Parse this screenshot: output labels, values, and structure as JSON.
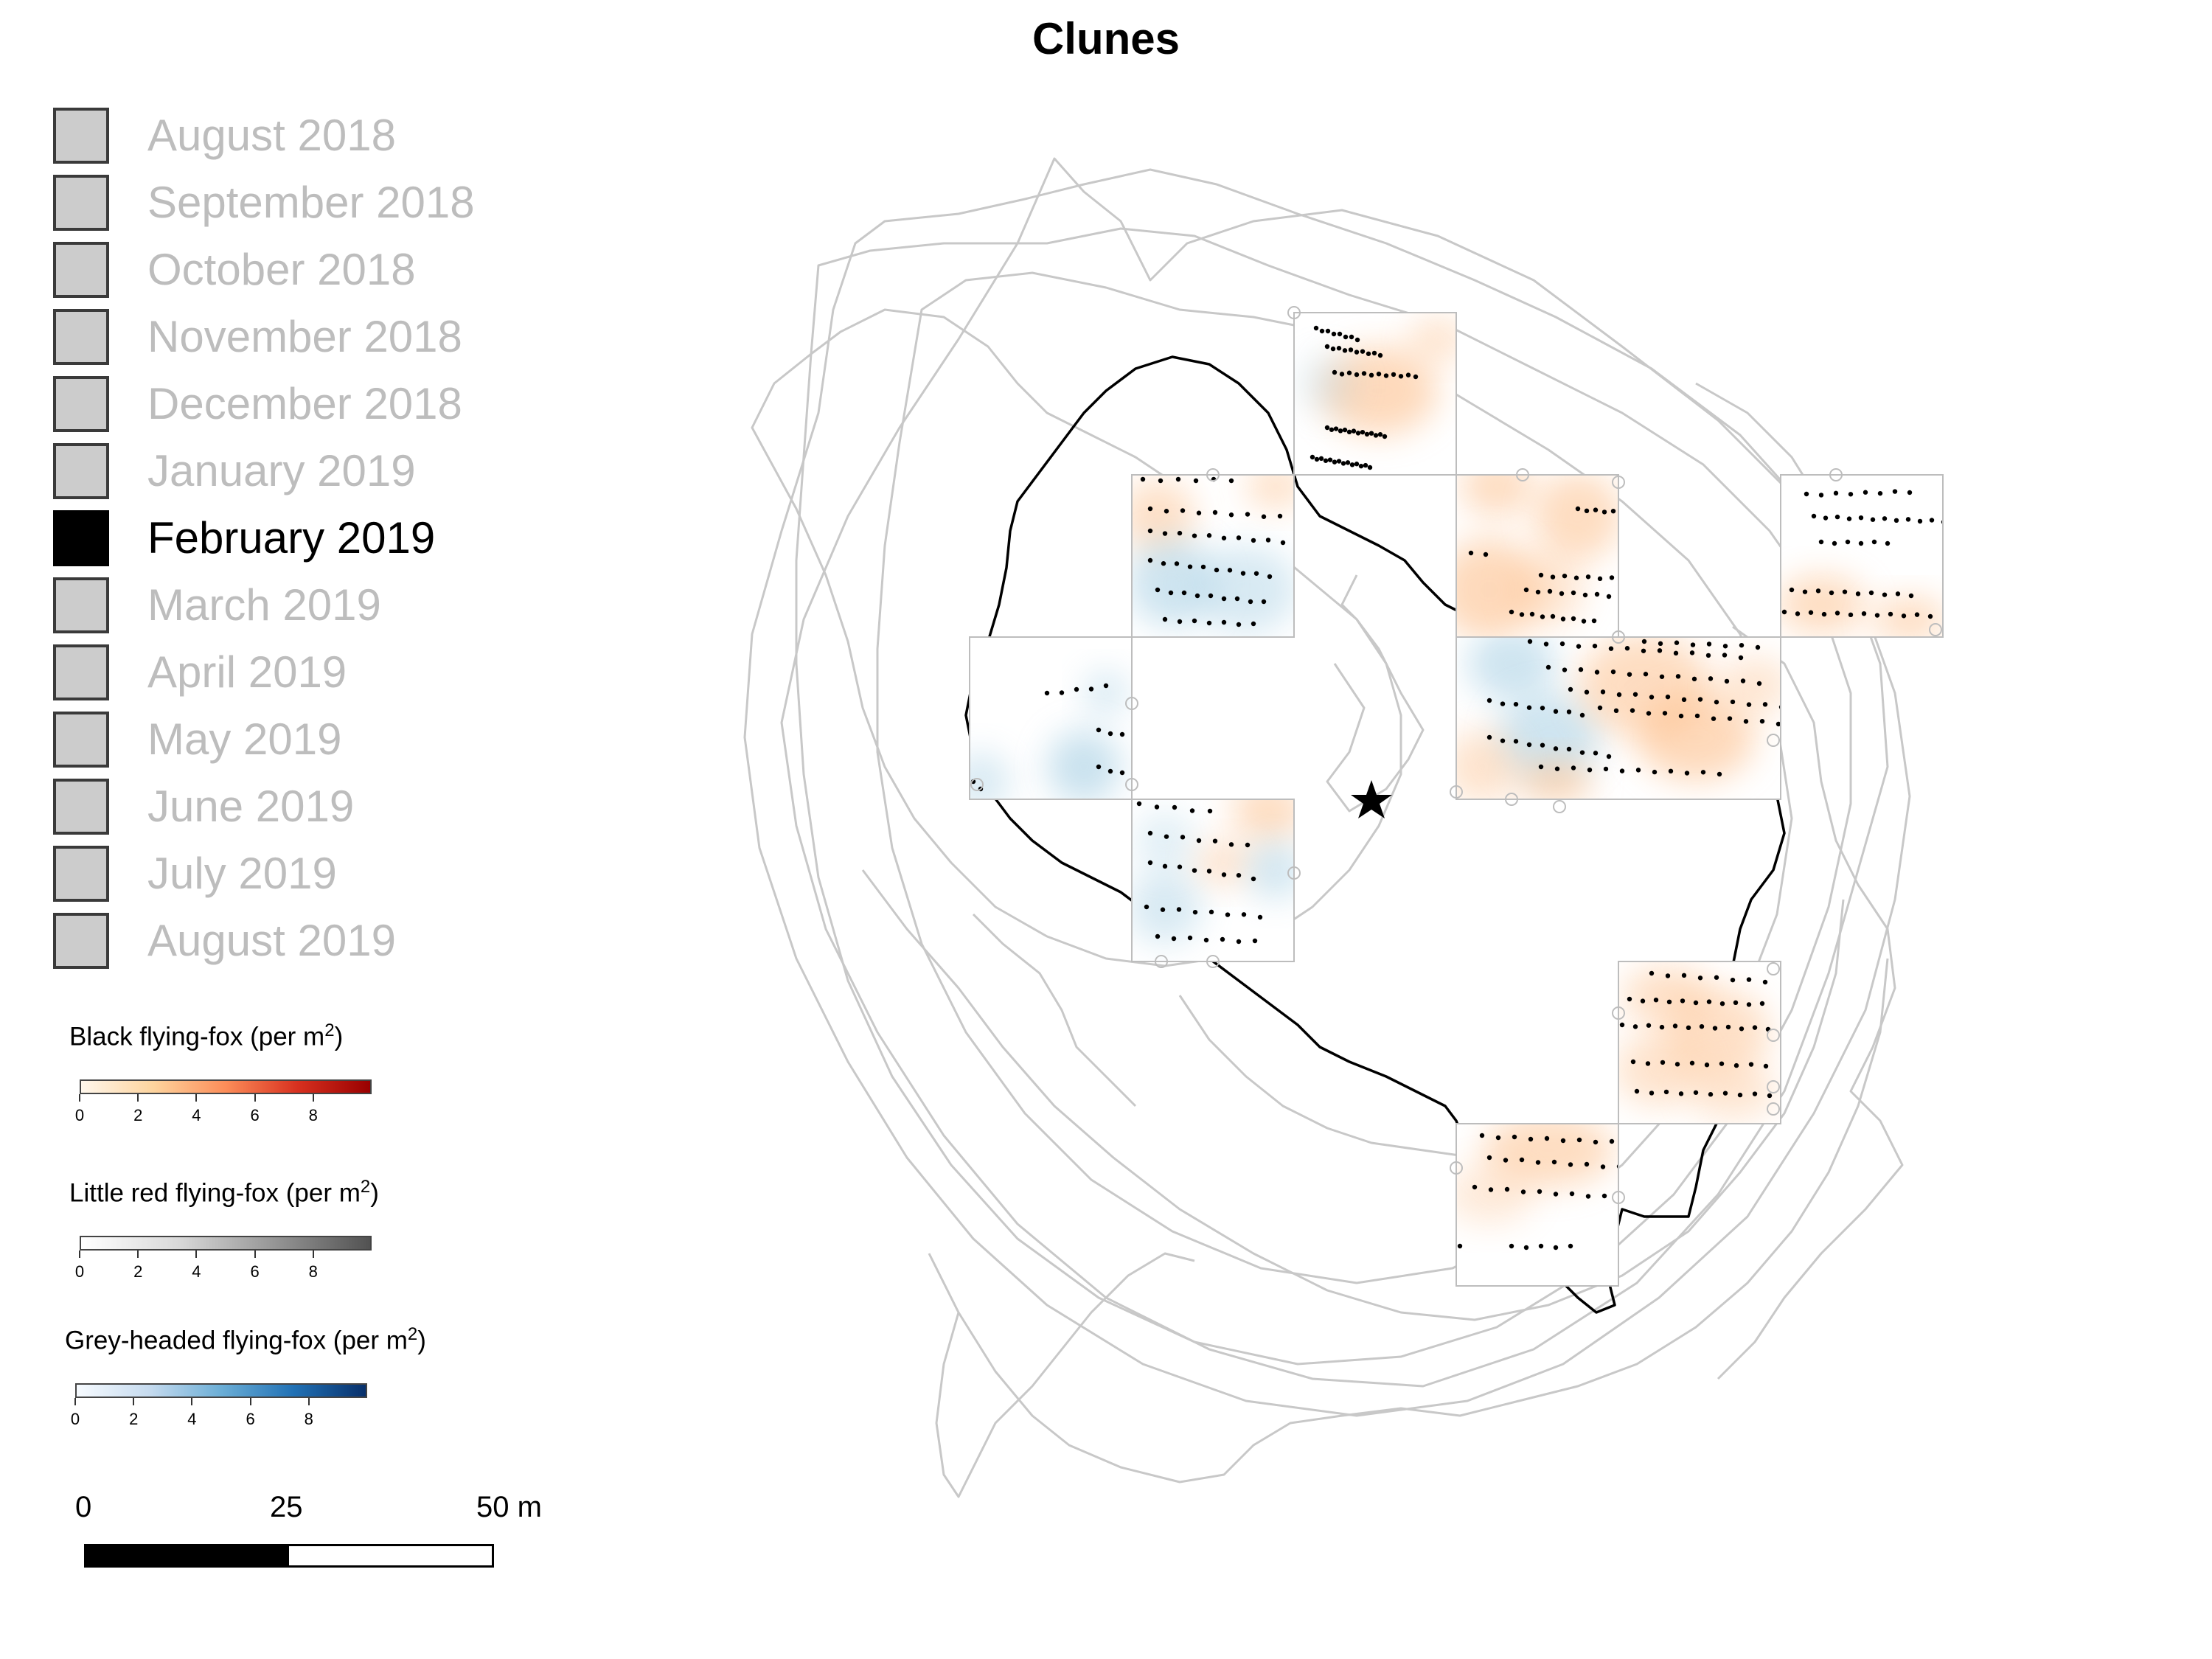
{
  "title": "Clunes",
  "months": [
    {
      "label": "August 2018",
      "active": false
    },
    {
      "label": "September 2018",
      "active": false
    },
    {
      "label": "October 2018",
      "active": false
    },
    {
      "label": "November 2018",
      "active": false
    },
    {
      "label": "December 2018",
      "active": false
    },
    {
      "label": "January 2019",
      "active": false
    },
    {
      "label": "February 2019",
      "active": true
    },
    {
      "label": "March 2019",
      "active": false
    },
    {
      "label": "April 2019",
      "active": false
    },
    {
      "label": "May 2019",
      "active": false
    },
    {
      "label": "June 2019",
      "active": false
    },
    {
      "label": "July 2019",
      "active": false
    },
    {
      "label": "August 2019",
      "active": false
    }
  ],
  "legends": [
    {
      "species": "Black flying-fox (per m",
      "unit_sup": "2",
      "close": ")",
      "colors": [
        "#fff7ec",
        "#fdd49e",
        "#fc8d59",
        "#d7301f",
        "#990000"
      ],
      "ticks": [
        "0",
        "2",
        "4",
        "6",
        "8"
      ]
    },
    {
      "species": "Little red flying-fox (per m",
      "unit_sup": "2",
      "close": ")",
      "colors": [
        "#ffffff",
        "#d9d9d9",
        "#969696",
        "#525252"
      ],
      "ticks": [
        "0",
        "2",
        "4",
        "6",
        "8"
      ]
    },
    {
      "species": "Grey-headed flying-fox (per m",
      "unit_sup": "2",
      "close": ")",
      "colors": [
        "#f7fbff",
        "#c6dbef",
        "#6baed6",
        "#2171b5",
        "#08306b"
      ],
      "ticks": [
        "0",
        "2",
        "4",
        "6",
        "8"
      ]
    }
  ],
  "scale_bar": {
    "labels": [
      "0",
      "25",
      "50 m"
    ]
  },
  "map_colors": {
    "tracks": "#c8c8c8",
    "boundary": "#000000",
    "point": "#000000",
    "black_ff": "#fdbb84",
    "grey_ff": "#9ecae1"
  }
}
